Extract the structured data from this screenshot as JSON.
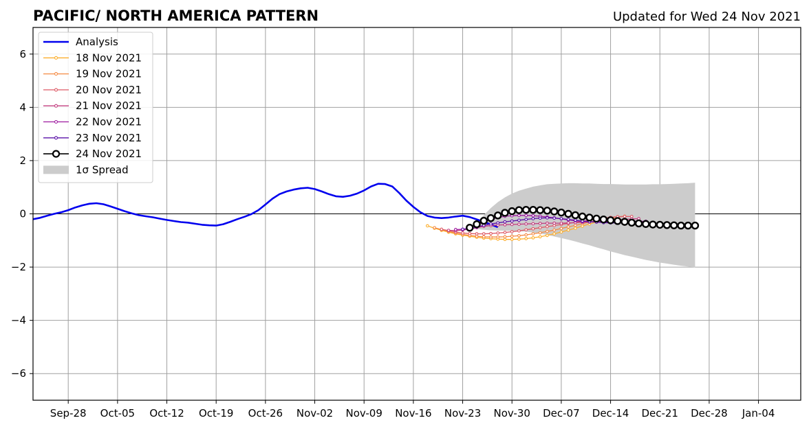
{
  "chart_data": {
    "type": "line",
    "title": "PACIFIC/ NORTH AMERICA PATTERN",
    "subtitle": "Updated for Wed 24 Nov 2021",
    "xlabel": "",
    "ylabel": "",
    "xlim": [
      "2021-09-23",
      "2022-01-10"
    ],
    "ylim": [
      -7,
      7
    ],
    "grid": true,
    "legend_position": "upper-left",
    "x_ticks": [
      "Sep-28",
      "Oct-05",
      "Oct-12",
      "Oct-19",
      "Oct-26",
      "Nov-02",
      "Nov-09",
      "Nov-16",
      "Nov-23",
      "Nov-30",
      "Dec-07",
      "Dec-14",
      "Dec-21",
      "Dec-28",
      "Jan-04"
    ],
    "x_tick_dates": [
      "2021-09-28",
      "2021-10-05",
      "2021-10-12",
      "2021-10-19",
      "2021-10-26",
      "2021-11-02",
      "2021-11-09",
      "2021-11-16",
      "2021-11-23",
      "2021-11-30",
      "2021-12-07",
      "2021-12-14",
      "2021-12-21",
      "2021-12-28",
      "2022-01-04"
    ],
    "y_ticks": [
      "−6",
      "−4",
      "−2",
      "0",
      "2",
      "4",
      "6"
    ],
    "y_tick_values": [
      -6,
      -4,
      -2,
      0,
      2,
      4,
      6
    ],
    "legend": [
      "Analysis",
      "18 Nov 2021",
      "19 Nov 2021",
      "20 Nov 2021",
      "21 Nov 2021",
      "22 Nov 2021",
      "23 Nov 2021",
      "24 Nov 2021",
      "1σ Spread"
    ],
    "analysis": {
      "name": "Analysis",
      "color": "#0000ee",
      "start_date": "2021-09-23",
      "values": [
        -0.2,
        -0.15,
        -0.07,
        0.0,
        0.06,
        0.14,
        0.24,
        0.32,
        0.38,
        0.4,
        0.36,
        0.28,
        0.19,
        0.1,
        0.02,
        -0.05,
        -0.09,
        -0.13,
        -0.18,
        -0.23,
        -0.27,
        -0.31,
        -0.33,
        -0.37,
        -0.41,
        -0.43,
        -0.44,
        -0.39,
        -0.3,
        -0.2,
        -0.11,
        -0.01,
        0.14,
        0.35,
        0.57,
        0.74,
        0.84,
        0.91,
        0.96,
        0.98,
        0.93,
        0.84,
        0.74,
        0.66,
        0.64,
        0.68,
        0.76,
        0.88,
        1.03,
        1.13,
        1.12,
        1.03,
        0.78,
        0.5,
        0.26,
        0.06,
        -0.08,
        -0.14,
        -0.16,
        -0.14,
        -0.1,
        -0.07,
        -0.12,
        -0.21,
        -0.3,
        -0.4,
        -0.5
      ]
    },
    "forecasts": [
      {
        "name": "18 Nov 2021",
        "color": "#fcae2c",
        "start_date": "2021-11-18",
        "values": [
          -0.45,
          -0.54,
          -0.62,
          -0.69,
          -0.75,
          -0.8,
          -0.84,
          -0.88,
          -0.91,
          -0.93,
          -0.95,
          -0.96,
          -0.96,
          -0.95,
          -0.93,
          -0.9,
          -0.86,
          -0.81,
          -0.75,
          -0.68,
          -0.61,
          -0.54,
          -0.46,
          -0.38,
          -0.31,
          -0.24,
          -0.19,
          -0.17
        ]
      },
      {
        "name": "19 Nov 2021",
        "color": "#f48a43",
        "start_date": "2021-11-19",
        "values": [
          -0.52,
          -0.59,
          -0.66,
          -0.72,
          -0.77,
          -0.81,
          -0.84,
          -0.86,
          -0.87,
          -0.87,
          -0.86,
          -0.84,
          -0.82,
          -0.79,
          -0.75,
          -0.71,
          -0.66,
          -0.61,
          -0.55,
          -0.49,
          -0.43,
          -0.37,
          -0.31,
          -0.25,
          -0.19,
          -0.15,
          -0.11,
          -0.09
        ]
      },
      {
        "name": "20 Nov 2021",
        "color": "#dd5965",
        "start_date": "2021-11-20",
        "values": [
          -0.58,
          -0.63,
          -0.68,
          -0.72,
          -0.74,
          -0.75,
          -0.75,
          -0.74,
          -0.72,
          -0.7,
          -0.67,
          -0.64,
          -0.6,
          -0.56,
          -0.52,
          -0.48,
          -0.44,
          -0.4,
          -0.36,
          -0.32,
          -0.28,
          -0.24,
          -0.2,
          -0.16,
          -0.13,
          -0.11,
          -0.1,
          -0.1
        ]
      },
      {
        "name": "21 Nov 2021",
        "color": "#c23b7e",
        "start_date": "2021-11-21",
        "values": [
          -0.62,
          -0.63,
          -0.61,
          -0.57,
          -0.52,
          -0.47,
          -0.44,
          -0.42,
          -0.41,
          -0.4,
          -0.39,
          -0.38,
          -0.37,
          -0.36,
          -0.35,
          -0.35,
          -0.35,
          -0.34,
          -0.33,
          -0.32,
          -0.31,
          -0.29,
          -0.27,
          -0.25,
          -0.23,
          -0.21,
          -0.19,
          -0.18
        ]
      },
      {
        "name": "22 Nov 2021",
        "color": "#9c179e",
        "start_date": "2021-11-22",
        "values": [
          -0.59,
          -0.58,
          -0.53,
          -0.42,
          -0.31,
          -0.21,
          -0.14,
          -0.09,
          -0.07,
          -0.06,
          -0.06,
          -0.07,
          -0.09,
          -0.12,
          -0.15,
          -0.19,
          -0.23,
          -0.26,
          -0.29,
          -0.3,
          -0.31,
          -0.31,
          -0.31,
          -0.3,
          -0.29,
          -0.28,
          -0.28,
          -0.28
        ]
      },
      {
        "name": "23 Nov 2021",
        "color": "#5a0fa8",
        "start_date": "2021-11-23",
        "values": [
          -0.58,
          -0.56,
          -0.5,
          -0.43,
          -0.38,
          -0.34,
          -0.3,
          -0.27,
          -0.24,
          -0.21,
          -0.18,
          -0.16,
          -0.15,
          -0.16,
          -0.18,
          -0.21,
          -0.24,
          -0.27,
          -0.29,
          -0.31,
          -0.33,
          -0.34,
          -0.34,
          -0.34,
          -0.35,
          -0.35,
          -0.35,
          -0.36
        ]
      }
    ],
    "latest": {
      "name": "24 Nov 2021",
      "color": "#000000",
      "start_date": "2021-11-24",
      "values": [
        -0.52,
        -0.39,
        -0.26,
        -0.16,
        -0.06,
        0.04,
        0.1,
        0.14,
        0.15,
        0.15,
        0.14,
        0.12,
        0.09,
        0.05,
        0.0,
        -0.05,
        -0.1,
        -0.14,
        -0.18,
        -0.21,
        -0.24,
        -0.27,
        -0.3,
        -0.33,
        -0.36,
        -0.38,
        -0.4,
        -0.41,
        -0.42,
        -0.43,
        -0.44,
        -0.44,
        -0.44
      ]
    },
    "spread": {
      "name": "1σ Spread",
      "color": "#cccccc",
      "start_date": "2021-11-24",
      "upper": [
        -0.55,
        -0.35,
        -0.05,
        0.22,
        0.44,
        0.62,
        0.76,
        0.87,
        0.95,
        1.02,
        1.07,
        1.11,
        1.13,
        1.14,
        1.15,
        1.15,
        1.14,
        1.14,
        1.13,
        1.12,
        1.12,
        1.11,
        1.1,
        1.1,
        1.1,
        1.1,
        1.11,
        1.11,
        1.12,
        1.13,
        1.14,
        1.15,
        1.17
      ],
      "lower": [
        -0.55,
        -0.57,
        -0.6,
        -0.62,
        -0.63,
        -0.63,
        -0.64,
        -0.65,
        -0.67,
        -0.7,
        -0.74,
        -0.79,
        -0.85,
        -0.91,
        -0.97,
        -1.04,
        -1.11,
        -1.18,
        -1.26,
        -1.33,
        -1.41,
        -1.48,
        -1.55,
        -1.61,
        -1.67,
        -1.73,
        -1.78,
        -1.83,
        -1.87,
        -1.91,
        -1.95,
        -1.98,
        -2.01
      ]
    }
  }
}
